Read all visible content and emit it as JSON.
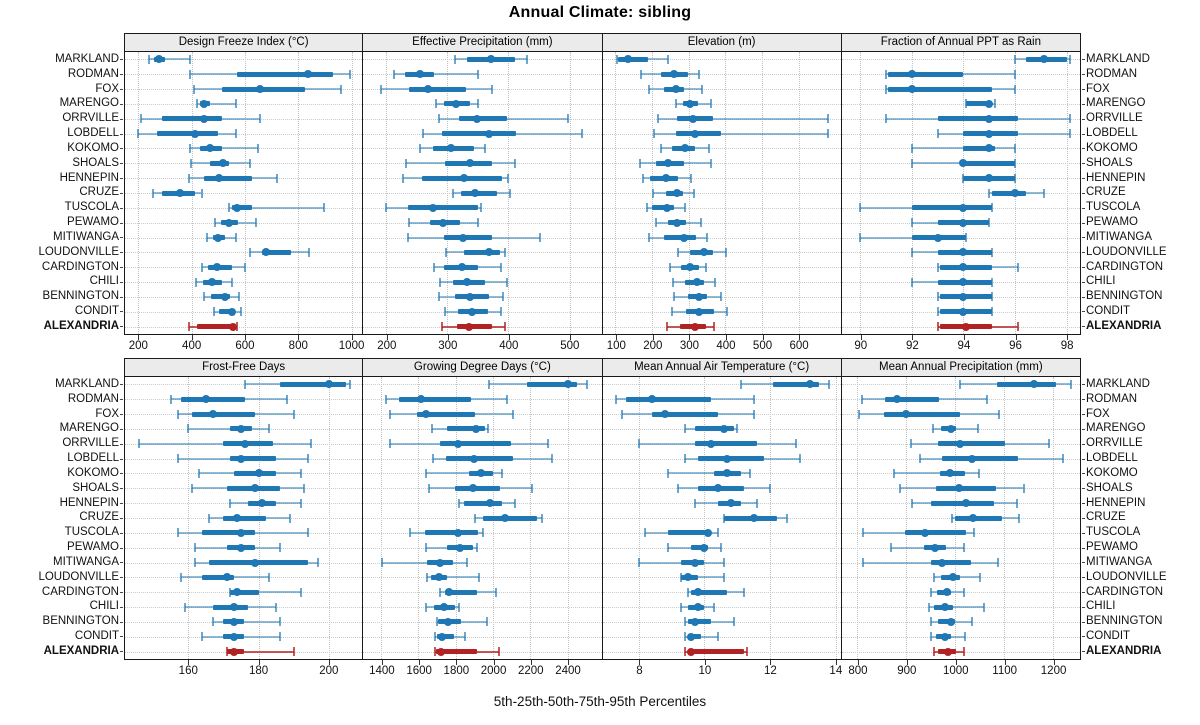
{
  "title": "Annual Climate: sibling",
  "caption": "5th-25th-50th-75th-95th Percentiles",
  "colors": {
    "series": "#1f77b4",
    "highlight": "#b22222",
    "header_bg": "#ebebeb",
    "grid": "#c3c3c3"
  },
  "highlight_station": "ALEXANDRIA",
  "stations": [
    "MARKLAND",
    "RODMAN",
    "FOX",
    "MARENGO",
    "ORRVILLE",
    "LOBDELL",
    "KOKOMO",
    "SHOALS",
    "HENNEPIN",
    "CRUZE",
    "TUSCOLA",
    "PEWAMO",
    "MITIWANGA",
    "LOUDONVILLE",
    "CARDINGTON",
    "CHILI",
    "BENNINGTON",
    "CONDIT",
    "ALEXANDRIA"
  ],
  "percentiles": [
    5,
    25,
    50,
    75,
    95
  ],
  "chart_data": [
    {
      "type": "interval-dot",
      "title": "Design Freeze Index (°C)",
      "ticks": [
        200,
        400,
        600,
        800,
        1000
      ],
      "domain": [
        150,
        1040
      ],
      "values": [
        [
          240,
          260,
          277,
          300,
          395
        ],
        [
          395,
          570,
          838,
          930,
          995
        ],
        [
          410,
          515,
          655,
          825,
          960
        ],
        [
          420,
          433,
          446,
          470,
          565
        ],
        [
          210,
          290,
          446,
          515,
          655
        ],
        [
          200,
          270,
          414,
          500,
          565
        ],
        [
          395,
          433,
          468,
          514,
          650
        ],
        [
          398,
          467,
          518,
          541,
          620
        ],
        [
          390,
          446,
          502,
          626,
          720
        ],
        [
          256,
          290,
          358,
          412,
          437
        ],
        [
          540,
          551,
          570,
          626,
          895
        ],
        [
          488,
          510,
          540,
          574,
          641
        ],
        [
          458,
          480,
          499,
          525,
          566
        ],
        [
          619,
          664,
          679,
          772,
          839
        ],
        [
          439,
          462,
          495,
          551,
          600
        ],
        [
          417,
          443,
          477,
          514,
          551
        ],
        [
          447,
          473,
          525,
          544,
          578
        ],
        [
          484,
          503,
          551,
          563,
          585
        ],
        [
          390,
          420,
          555,
          565,
          570
        ]
      ]
    },
    {
      "type": "interval-dot",
      "title": "Effective Precipitation (mm)",
      "ticks": [
        200,
        300,
        400,
        500
      ],
      "domain": [
        163,
        552
      ],
      "values": [
        [
          312,
          333,
          372,
          410,
          431
        ],
        [
          213,
          231,
          255,
          279,
          351
        ],
        [
          192,
          238,
          268,
          331,
          374
        ],
        [
          281,
          295,
          314,
          338,
          350
        ],
        [
          287,
          320,
          349,
          397,
          497
        ],
        [
          261,
          292,
          368,
          413,
          520
        ],
        [
          255,
          277,
          307,
          344,
          362
        ],
        [
          233,
          297,
          338,
          374,
          410
        ],
        [
          228,
          259,
          327,
          390,
          400
        ],
        [
          310,
          323,
          345,
          382,
          403
        ],
        [
          200,
          236,
          277,
          351,
          356
        ],
        [
          238,
          272,
          294,
          321,
          350
        ],
        [
          236,
          295,
          326,
          374,
          451
        ],
        [
          298,
          328,
          369,
          387,
          395
        ],
        [
          278,
          295,
          324,
          351,
          388
        ],
        [
          288,
          310,
          333,
          362,
          398
        ],
        [
          286,
          313,
          337,
          369,
          391
        ],
        [
          297,
          318,
          340,
          367,
          388
        ],
        [
          291,
          316,
          335,
          374,
          395
        ]
      ]
    },
    {
      "type": "interval-dot",
      "title": "Elevation (m)",
      "ticks": [
        100,
        200,
        300,
        400,
        500,
        600
      ],
      "domain": [
        65,
        714
      ],
      "values": [
        [
          104,
          108,
          135,
          189,
          243
        ],
        [
          171,
          225,
          261,
          297,
          329
        ],
        [
          191,
          232,
          266,
          288,
          335
        ],
        [
          266,
          284,
          304,
          324,
          360
        ],
        [
          216,
          268,
          311,
          367,
          678
        ],
        [
          205,
          266,
          317,
          389,
          680
        ],
        [
          223,
          255,
          290,
          318,
          356
        ],
        [
          168,
          212,
          244,
          288,
          360
        ],
        [
          176,
          194,
          237,
          270,
          306
        ],
        [
          203,
          239,
          268,
          284,
          313
        ],
        [
          185,
          201,
          241,
          261,
          291
        ],
        [
          212,
          243,
          268,
          293,
          333
        ],
        [
          191,
          232,
          287,
          320,
          349
        ],
        [
          270,
          304,
          342,
          365,
          401
        ],
        [
          248,
          279,
          304,
          329,
          347
        ],
        [
          257,
          291,
          323,
          342,
          371
        ],
        [
          261,
          297,
          329,
          351,
          387
        ],
        [
          254,
          293,
          329,
          369,
          405
        ],
        [
          241,
          275,
          317,
          347,
          368
        ]
      ]
    },
    {
      "type": "interval-dot",
      "title": "Fraction of Annual PPT as Rain",
      "ticks": [
        90,
        92,
        94,
        96,
        98
      ],
      "domain": [
        89.3,
        98.5
      ],
      "values": [
        [
          96.0,
          96.4,
          97.1,
          98.0,
          98.1
        ],
        [
          91.0,
          91.1,
          92.0,
          94.0,
          96.0
        ],
        [
          91.0,
          91.1,
          92.0,
          95.1,
          96.0
        ],
        [
          94.1,
          94.1,
          95.0,
          95.1,
          95.2
        ],
        [
          91.0,
          93.0,
          95.0,
          96.1,
          98.1
        ],
        [
          93.0,
          94.0,
          95.0,
          96.1,
          98.1
        ],
        [
          92.0,
          94.0,
          95.0,
          95.2,
          96.0
        ],
        [
          92.0,
          93.9,
          94.0,
          96.0,
          96.0
        ],
        [
          94.0,
          94.0,
          95.0,
          96.0,
          96.0
        ],
        [
          95.0,
          95.1,
          96.0,
          96.4,
          97.1
        ],
        [
          90.0,
          92.0,
          94.0,
          95.1,
          95.1
        ],
        [
          92.0,
          93.0,
          94.0,
          95.0,
          95.0
        ],
        [
          90.0,
          92.0,
          93.0,
          94.1,
          94.1
        ],
        [
          92.0,
          93.0,
          94.0,
          95.1,
          95.1
        ],
        [
          93.0,
          93.1,
          94.0,
          95.1,
          96.1
        ],
        [
          92.0,
          93.0,
          94.0,
          95.1,
          95.1
        ],
        [
          93.0,
          93.1,
          94.0,
          95.1,
          95.1
        ],
        [
          93.0,
          93.1,
          94.0,
          95.1,
          95.1
        ],
        [
          93.0,
          93.1,
          94.1,
          95.1,
          96.1
        ]
      ]
    },
    {
      "type": "interval-dot",
      "title": "Frost-Free Days",
      "ticks": [
        160,
        180,
        200
      ],
      "domain": [
        142,
        209.5
      ],
      "values": [
        [
          176,
          186,
          200,
          205,
          206
        ],
        [
          155,
          158,
          165,
          176,
          188
        ],
        [
          157,
          161,
          167,
          179,
          190
        ],
        [
          160,
          172,
          175,
          178,
          183
        ],
        [
          146,
          170,
          176,
          184,
          195
        ],
        [
          157,
          172,
          175,
          185,
          194
        ],
        [
          163,
          173,
          180,
          185,
          192
        ],
        [
          161,
          171,
          179,
          186,
          193
        ],
        [
          172,
          177,
          181,
          185,
          192
        ],
        [
          166,
          170,
          174,
          182,
          189
        ],
        [
          157,
          164,
          175,
          179,
          194
        ],
        [
          162,
          171,
          175,
          179,
          186
        ],
        [
          162,
          166,
          179,
          194,
          197
        ],
        [
          158,
          164,
          171,
          173,
          183
        ],
        [
          172,
          172,
          174,
          180,
          192
        ],
        [
          159,
          167,
          173,
          177,
          185
        ],
        [
          167,
          170,
          173,
          176,
          186
        ],
        [
          164,
          170,
          173,
          176,
          186
        ],
        [
          171,
          171,
          173,
          176,
          190
        ]
      ]
    },
    {
      "type": "interval-dot",
      "title": "Growing Degree Days (°C)",
      "ticks": [
        1400,
        1600,
        1800,
        2000,
        2200,
        2400
      ],
      "domain": [
        1305,
        2580
      ],
      "values": [
        [
          1980,
          2180,
          2400,
          2450,
          2500
        ],
        [
          1425,
          1495,
          1615,
          1880,
          2075
        ],
        [
          1450,
          1590,
          1640,
          1905,
          2105
        ],
        [
          1675,
          1755,
          1910,
          1955,
          1975
        ],
        [
          1450,
          1715,
          1810,
          2095,
          2295
        ],
        [
          1680,
          1750,
          1900,
          2105,
          2315
        ],
        [
          1640,
          1870,
          1935,
          2000,
          2050
        ],
        [
          1655,
          1795,
          1895,
          2035,
          2210
        ],
        [
          1815,
          1845,
          1985,
          2050,
          2115
        ],
        [
          1905,
          1945,
          2065,
          2235,
          2260
        ],
        [
          1555,
          1635,
          1810,
          1920,
          1945
        ],
        [
          1640,
          1755,
          1825,
          1895,
          1915
        ],
        [
          1405,
          1645,
          1715,
          1785,
          1860
        ],
        [
          1645,
          1665,
          1710,
          1755,
          1925
        ],
        [
          1715,
          1740,
          1765,
          1915,
          2015
        ],
        [
          1640,
          1685,
          1735,
          1795,
          1815
        ],
        [
          1700,
          1705,
          1760,
          1830,
          1965
        ],
        [
          1690,
          1700,
          1725,
          1790,
          1850
        ],
        [
          1690,
          1695,
          1720,
          1915,
          2030
        ]
      ]
    },
    {
      "type": "interval-dot",
      "title": "Mean Annual Air Temperature (°C)",
      "ticks": [
        8,
        10,
        12,
        14
      ],
      "domain": [
        6.9,
        14.15
      ],
      "values": [
        [
          11.1,
          12.1,
          13.2,
          13.5,
          13.8
        ],
        [
          7.3,
          7.6,
          8.4,
          10.2,
          11.5
        ],
        [
          7.5,
          8.4,
          8.8,
          10.4,
          11.5
        ],
        [
          9.4,
          9.7,
          10.6,
          10.9,
          11.0
        ],
        [
          8.0,
          9.7,
          10.2,
          11.6,
          12.8
        ],
        [
          9.4,
          9.8,
          10.7,
          11.8,
          12.9
        ],
        [
          8.9,
          10.3,
          10.7,
          11.1,
          11.4
        ],
        [
          9.2,
          9.8,
          10.4,
          11.2,
          12.0
        ],
        [
          9.7,
          10.4,
          10.8,
          11.1,
          11.6
        ],
        [
          10.6,
          10.6,
          11.5,
          12.2,
          12.5
        ],
        [
          8.2,
          8.9,
          10.1,
          10.2,
          10.4
        ],
        [
          8.9,
          9.6,
          10.0,
          10.1,
          10.5
        ],
        [
          8.0,
          9.3,
          9.7,
          10.0,
          10.6
        ],
        [
          9.3,
          9.3,
          9.5,
          9.8,
          10.6
        ],
        [
          9.5,
          9.6,
          9.8,
          10.7,
          11.2
        ],
        [
          9.3,
          9.5,
          9.8,
          10.0,
          10.3
        ],
        [
          9.4,
          9.5,
          9.7,
          10.2,
          10.9
        ],
        [
          9.4,
          9.5,
          9.6,
          9.9,
          10.4
        ],
        [
          9.4,
          9.5,
          9.6,
          11.2,
          11.3
        ]
      ]
    },
    {
      "type": "interval-dot",
      "title": "Mean Annual Precipitation (mm)",
      "ticks": [
        800,
        900,
        1000,
        1100,
        1200
      ],
      "domain": [
        769,
        1254
      ],
      "values": [
        [
          1010,
          1085,
          1160,
          1205,
          1235
        ],
        [
          810,
          857,
          882,
          968,
          1065
        ],
        [
          805,
          855,
          900,
          1010,
          1090
        ],
        [
          955,
          972,
          992,
          1002,
          1046
        ],
        [
          909,
          965,
          1009,
          1101,
          1191
        ],
        [
          928,
          974,
          1034,
          1127,
          1220
        ],
        [
          876,
          968,
          989,
          1019,
          1049
        ],
        [
          887,
          961,
          1007,
          1083,
          1139
        ],
        [
          913,
          950,
          1022,
          1078,
          1126
        ],
        [
          993,
          999,
          1036,
          1095,
          1129
        ],
        [
          813,
          897,
          938,
          1022,
          1038
        ],
        [
          870,
          936,
          959,
          982,
          1018
        ],
        [
          813,
          951,
          973,
          1032,
          1087
        ],
        [
          957,
          972,
          995,
          1009,
          1051
        ],
        [
          950,
          963,
          984,
          992,
          1018
        ],
        [
          947,
          957,
          980,
          995,
          1058
        ],
        [
          951,
          965,
          992,
          999,
          1034
        ],
        [
          951,
          960,
          980,
          991,
          1019
        ],
        [
          956,
          964,
          986,
          1002,
          1018
        ]
      ]
    }
  ]
}
